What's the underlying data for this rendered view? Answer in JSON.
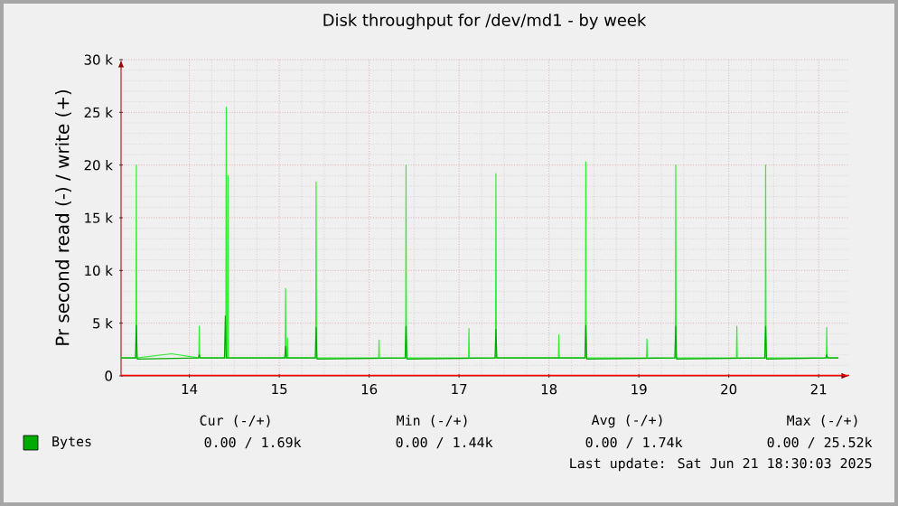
{
  "chart_data": {
    "type": "line",
    "title": "Disk throughput for /dev/md1 - by week",
    "ylabel": "Pr second read (-) / write (+)",
    "xlim": [
      13.24,
      21.34
    ],
    "xticks": [
      14,
      15,
      16,
      17,
      18,
      19,
      20,
      21
    ],
    "ylim": [
      0,
      30000
    ],
    "yticks": [
      0,
      {
        "value": 5000,
        "label": "5 k"
      },
      {
        "value": 10000,
        "label": "10 k"
      },
      {
        "value": 15000,
        "label": "15 k"
      },
      {
        "value": 20000,
        "label": "20 k"
      },
      {
        "value": 25000,
        "label": "25 k"
      },
      {
        "value": 30000,
        "label": "30 k"
      }
    ],
    "grid": true,
    "legend": "bottom left",
    "ref_lines": [
      {
        "axis": "y",
        "value": 0,
        "color": "#ff0000"
      }
    ],
    "series": [
      {
        "color": "#33ee33",
        "x": [
          13.24,
          13.405,
          13.41,
          13.415,
          13.8,
          14.105,
          14.11,
          14.115,
          14.405,
          14.41,
          14.415,
          14.425,
          14.43,
          14.435,
          15.065,
          15.07,
          15.075,
          15.085,
          15.09,
          15.095,
          15.405,
          15.41,
          15.415,
          16.105,
          16.11,
          16.115,
          16.405,
          16.41,
          16.415,
          17.105,
          17.11,
          17.115,
          17.405,
          17.41,
          17.415,
          18.105,
          18.11,
          18.115,
          18.405,
          18.41,
          18.415,
          19.085,
          19.09,
          19.095,
          19.405,
          19.41,
          19.415,
          20.085,
          20.09,
          20.095,
          20.405,
          20.41,
          20.415,
          21.085,
          21.09,
          21.095,
          21.22
        ],
        "values": [
          1700,
          1700,
          20000,
          1700,
          2100,
          1700,
          4700,
          1700,
          1700,
          25500,
          1700,
          1700,
          19000,
          1700,
          1700,
          8300,
          1700,
          1700,
          3600,
          1700,
          1700,
          18400,
          1700,
          1700,
          3400,
          1700,
          1700,
          20000,
          1700,
          1700,
          4500,
          1700,
          1700,
          19200,
          1700,
          1700,
          3900,
          1700,
          1700,
          20300,
          1700,
          1700,
          3500,
          1700,
          1700,
          20000,
          1700,
          1700,
          4700,
          1700,
          1700,
          20000,
          1700,
          1700,
          4600,
          1700,
          1700
        ]
      },
      {
        "name": "Bytes",
        "color": "#00aa00",
        "x": [
          13.24,
          13.4,
          13.41,
          13.42,
          14.1,
          14.11,
          14.12,
          14.39,
          14.4,
          14.41,
          15.06,
          15.07,
          15.08,
          15.4,
          15.41,
          15.42,
          16.4,
          16.41,
          16.42,
          17.4,
          17.41,
          17.42,
          18.4,
          18.41,
          18.42,
          19.4,
          19.41,
          19.42,
          20.4,
          20.41,
          20.42,
          21.08,
          21.09,
          21.1,
          21.22
        ],
        "values": [
          1700,
          1700,
          4800,
          1600,
          1700,
          2000,
          1700,
          1700,
          5700,
          1700,
          1700,
          2800,
          1700,
          1700,
          4600,
          1600,
          1700,
          4700,
          1600,
          1700,
          4400,
          1700,
          1700,
          4800,
          1600,
          1700,
          4700,
          1600,
          1700,
          4700,
          1600,
          1700,
          2000,
          1700,
          1700
        ]
      }
    ],
    "annotations": [
      "Cur (-/+)",
      "Min (-/+)",
      "Avg (-/+)",
      "Max (-/+)",
      "0.00 / 1.69k",
      "0.00 / 1.44k",
      "0.00 / 1.74k",
      "0.00 / 25.52k",
      "Last update: Sat Jun 21 18:30:03 2025"
    ]
  }
}
